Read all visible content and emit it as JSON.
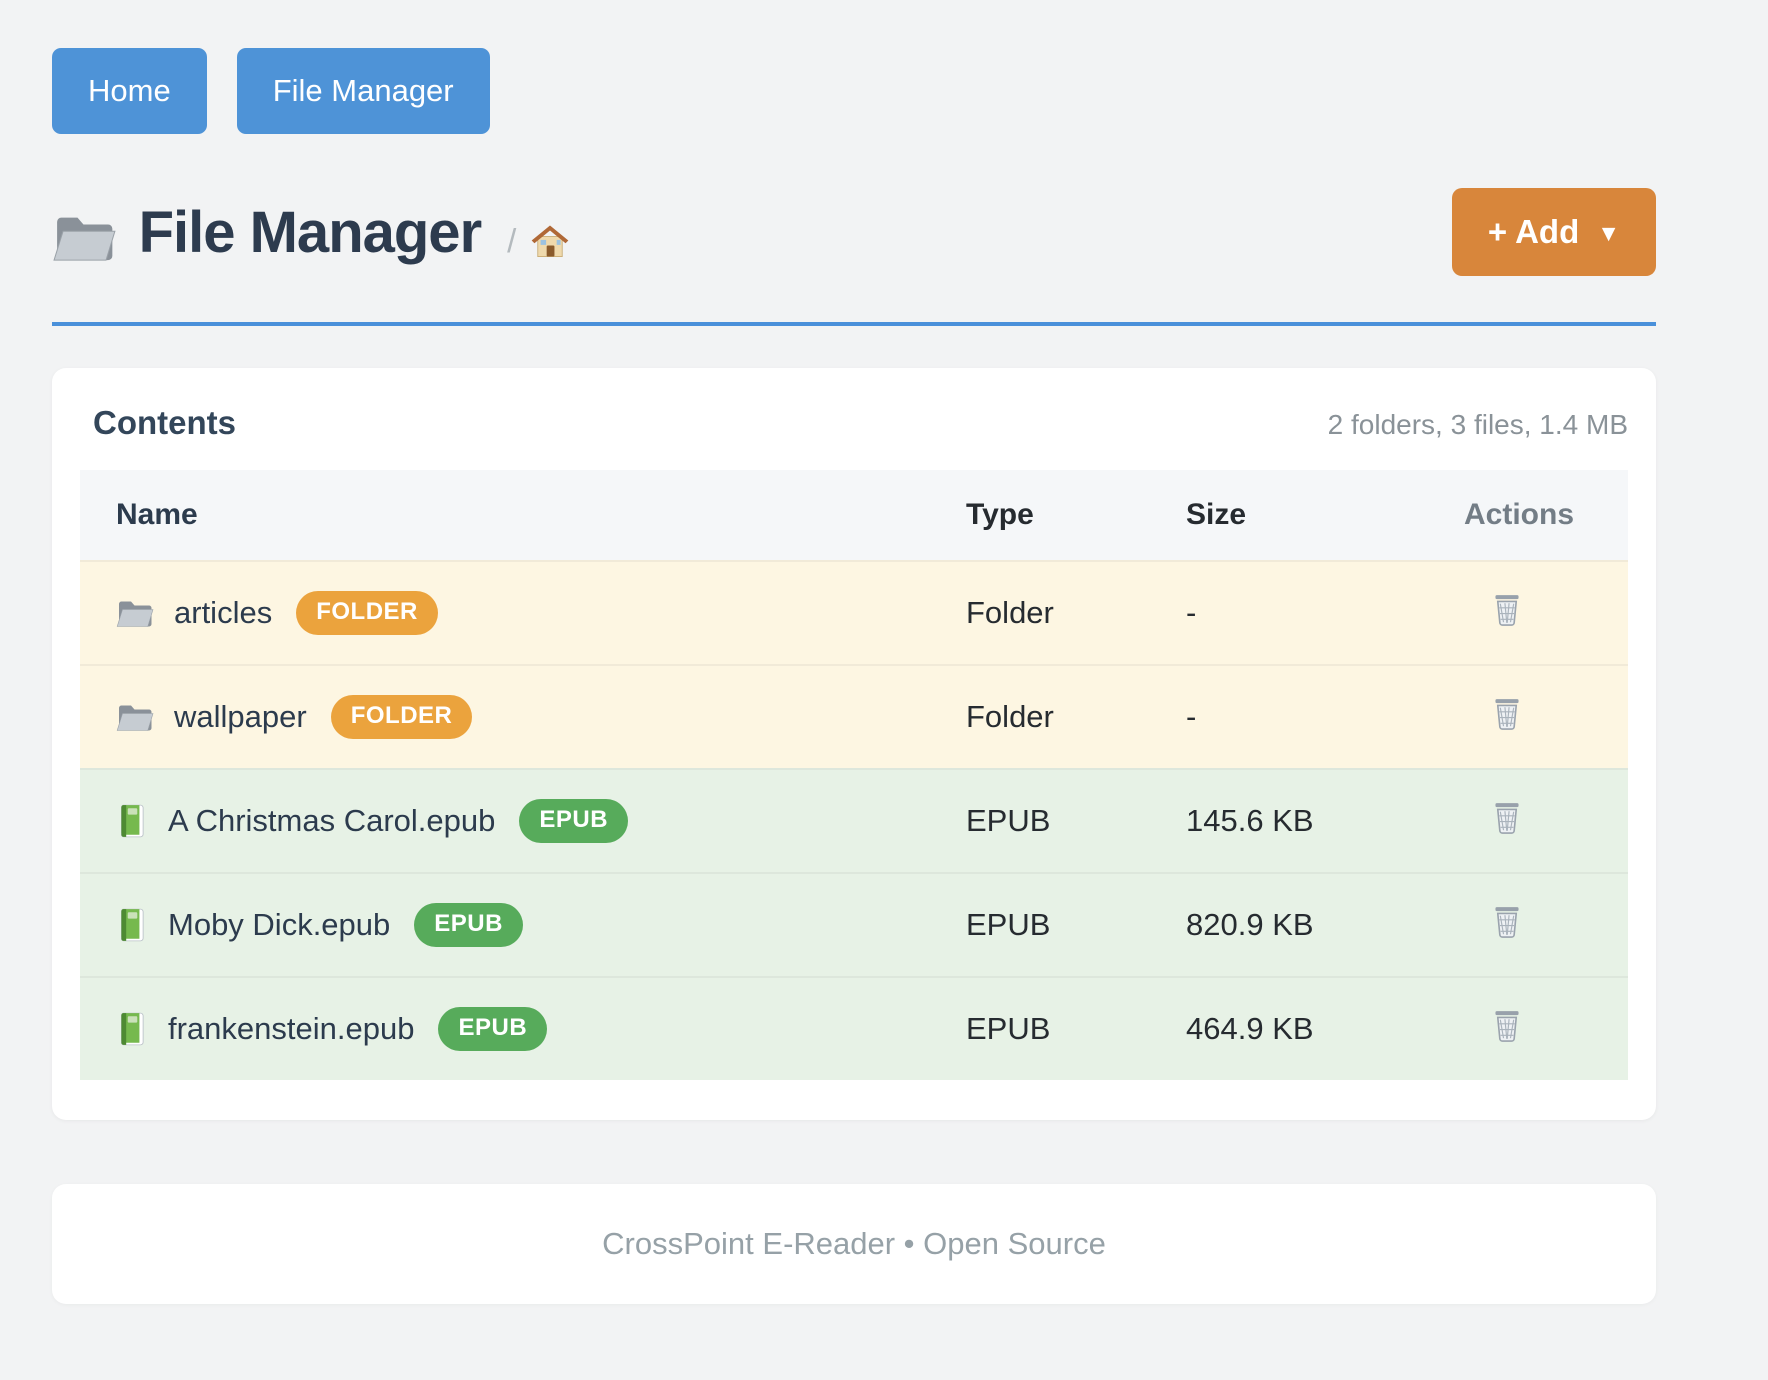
{
  "nav": {
    "buttons": [
      {
        "label": "Home"
      },
      {
        "label": "File Manager"
      }
    ]
  },
  "header": {
    "title": "File Manager",
    "title_icon": "folder-icon",
    "breadcrumb_separator": "/",
    "breadcrumb_home_icon": "home-icon",
    "add_button": {
      "label": "+ Add",
      "caret": "▼"
    }
  },
  "contents": {
    "title": "Contents",
    "summary": "2 folders, 3 files, 1.4 MB",
    "table": {
      "columns": [
        "Name",
        "Type",
        "Size",
        "Actions"
      ],
      "rows": [
        {
          "kind": "folder",
          "icon": "folder-icon",
          "name": "articles",
          "badge": "FOLDER",
          "type": "Folder",
          "size": "-"
        },
        {
          "kind": "folder",
          "icon": "folder-icon",
          "name": "wallpaper",
          "badge": "FOLDER",
          "type": "Folder",
          "size": "-"
        },
        {
          "kind": "epub",
          "icon": "green-book-icon",
          "name": "A Christmas Carol.epub",
          "badge": "EPUB",
          "type": "EPUB",
          "size": "145.6 KB"
        },
        {
          "kind": "epub",
          "icon": "green-book-icon",
          "name": "Moby Dick.epub",
          "badge": "EPUB",
          "type": "EPUB",
          "size": "820.9 KB"
        },
        {
          "kind": "epub",
          "icon": "green-book-icon",
          "name": "frankenstein.epub",
          "badge": "EPUB",
          "type": "EPUB",
          "size": "464.9 KB"
        }
      ],
      "action_icon": "trash-icon"
    }
  },
  "footer": {
    "text": "CrossPoint E-Reader • Open Source"
  },
  "colors": {
    "primary_blue": "#4e93d7",
    "rule_blue": "#4a90da",
    "accent_orange": "#d8863b",
    "badge_folder": "#eba33d",
    "badge_epub": "#57ab5b",
    "row_folder_bg": "#fdf6e2",
    "row_epub_bg": "#e7f2e6",
    "page_bg": "#f2f3f4",
    "heading_text": "#2d3b4e",
    "muted_text": "#8a9298"
  }
}
